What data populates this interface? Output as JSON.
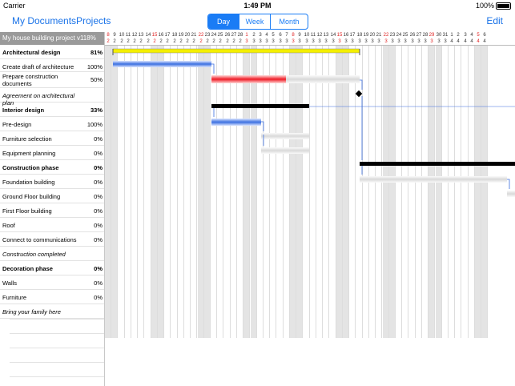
{
  "status_bar": {
    "carrier": "Carrier",
    "time": "1:49 PM",
    "battery": "100%"
  },
  "nav": {
    "my_documents": "My Documents",
    "projects": "Projects",
    "edit": "Edit",
    "segments": [
      "Day",
      "Week",
      "Month"
    ],
    "selected_segment": "Day"
  },
  "project_title": "My house building project v1",
  "project_percent": "18%",
  "tasks": [
    {
      "name": "Architectural design",
      "pct": "81%",
      "bold": true
    },
    {
      "name": "Create draft of architecture",
      "pct": "100%"
    },
    {
      "name": "Prepare construction documents",
      "pct": "50%"
    },
    {
      "name": "Agreement on architectural plan",
      "pct": "",
      "italic": true
    },
    {
      "name": "Interior design",
      "pct": "33%",
      "bold": true
    },
    {
      "name": "Pre-design",
      "pct": "100%"
    },
    {
      "name": "Furniture selection",
      "pct": "0%"
    },
    {
      "name": "Equipment planning",
      "pct": "0%"
    },
    {
      "name": "Construction phase",
      "pct": "0%",
      "bold": true
    },
    {
      "name": "Foundation building",
      "pct": "0%"
    },
    {
      "name": "Ground Floor building",
      "pct": "0%"
    },
    {
      "name": "First Floor building",
      "pct": "0%"
    },
    {
      "name": "Roof",
      "pct": "0%"
    },
    {
      "name": "Connect to communications",
      "pct": "0%"
    },
    {
      "name": "Construction completed",
      "pct": "",
      "italic": true
    },
    {
      "name": "Decoration phase",
      "pct": "0%",
      "bold": true
    },
    {
      "name": "Walls",
      "pct": "0%"
    },
    {
      "name": "Furniture",
      "pct": "0%"
    },
    {
      "name": "Bring your family here",
      "pct": "",
      "italic": true
    }
  ],
  "timeline": {
    "days": [
      "8",
      "9",
      "10",
      "11",
      "12",
      "13",
      "14",
      "15",
      "16",
      "17",
      "18",
      "19",
      "20",
      "21",
      "22",
      "23",
      "24",
      "25",
      "26",
      "27",
      "28",
      "1",
      "2",
      "3",
      "4",
      "5",
      "6",
      "7",
      "8",
      "9",
      "10",
      "11",
      "12",
      "13",
      "14",
      "15",
      "16",
      "17",
      "18",
      "19",
      "20",
      "21",
      "22",
      "23",
      "24",
      "25",
      "26",
      "27",
      "28",
      "29",
      "30",
      "31",
      "1",
      "2",
      "3",
      "4",
      "5",
      "6"
    ],
    "months": [
      "2",
      "2",
      "2",
      "2",
      "2",
      "2",
      "2",
      "2",
      "2",
      "2",
      "2",
      "2",
      "2",
      "2",
      "2",
      "2",
      "2",
      "2",
      "2",
      "2",
      "2",
      "3",
      "3",
      "3",
      "3",
      "3",
      "3",
      "3",
      "3",
      "3",
      "3",
      "3",
      "3",
      "3",
      "3",
      "3",
      "3",
      "3",
      "3",
      "3",
      "3",
      "3",
      "3",
      "3",
      "3",
      "3",
      "3",
      "3",
      "3",
      "3",
      "3",
      "3",
      "4",
      "4",
      "4",
      "4",
      "4",
      "4"
    ],
    "red_indices": [
      0,
      7,
      14,
      21,
      28,
      35,
      42,
      49,
      56
    ]
  },
  "colors": {
    "accent": "#1a7cf5",
    "summary_yellow": "#f4ef00",
    "progress_blue": "#3b6fe0",
    "critical_red": "#ef1b26",
    "summary_black": "#000000"
  }
}
